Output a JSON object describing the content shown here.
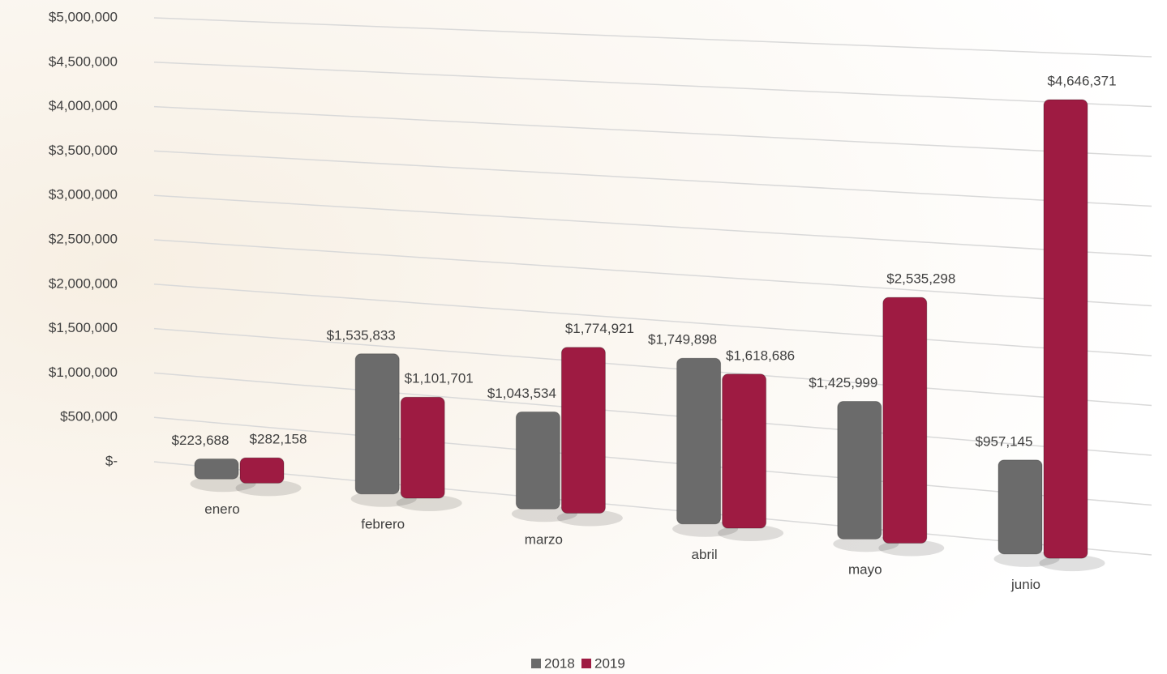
{
  "chart_data": {
    "type": "bar",
    "categories": [
      "enero",
      "febrero",
      "marzo",
      "abril",
      "mayo",
      "junio"
    ],
    "series": [
      {
        "name": "2018",
        "color": "#6b6b6b",
        "values": [
          223688,
          1535833,
          1043534,
          1749898,
          1425999,
          957145
        ],
        "value_labels": [
          "$223,688",
          "$1,535,833",
          "$1,043,534",
          "$1,749,898",
          "$1,425,999",
          "$957,145"
        ]
      },
      {
        "name": "2019",
        "color": "#9e1b42",
        "values": [
          282158,
          1101701,
          1774921,
          1618686,
          2535298,
          4646371
        ],
        "value_labels": [
          "$282,158",
          "$1,101,701",
          "$1,774,921",
          "$1,618,686",
          "$2,535,298",
          "$4,646,371"
        ]
      }
    ],
    "ylim": [
      0,
      5000000
    ],
    "yticks": [
      {
        "value": 0,
        "label": "$-"
      },
      {
        "value": 500000,
        "label": "$500,000"
      },
      {
        "value": 1000000,
        "label": "$1,000,000"
      },
      {
        "value": 1500000,
        "label": "$1,500,000"
      },
      {
        "value": 2000000,
        "label": "$2,000,000"
      },
      {
        "value": 2500000,
        "label": "$2,500,000"
      },
      {
        "value": 3000000,
        "label": "$3,000,000"
      },
      {
        "value": 3500000,
        "label": "$3,500,000"
      },
      {
        "value": 4000000,
        "label": "$4,000,000"
      },
      {
        "value": 4500000,
        "label": "$4,500,000"
      },
      {
        "value": 5000000,
        "label": "$5,000,000"
      }
    ],
    "grid": true,
    "legend": "bottom"
  }
}
